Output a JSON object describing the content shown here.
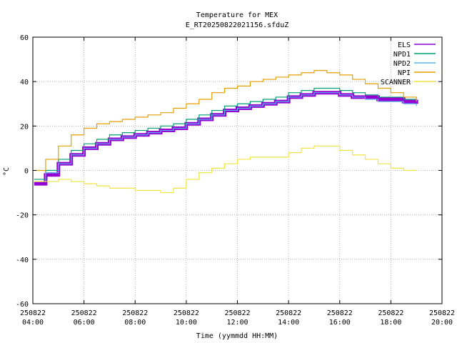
{
  "chart_data": {
    "type": "line",
    "title": "Temperature for MEX",
    "subtitle": "E_RT20250822021156.sfduZ",
    "xlabel": "Time (yymmdd HH:MM)",
    "ylabel": "°C",
    "xlim": [
      4,
      20
    ],
    "ylim": [
      -60,
      60
    ],
    "grid": true,
    "legend_position": "top-right",
    "x_ticks": [
      {
        "x": 4,
        "date": "250822",
        "time": "04:00"
      },
      {
        "x": 6,
        "date": "250822",
        "time": "06:00"
      },
      {
        "x": 8,
        "date": "250822",
        "time": "08:00"
      },
      {
        "x": 10,
        "date": "250822",
        "time": "10:00"
      },
      {
        "x": 12,
        "date": "250822",
        "time": "12:00"
      },
      {
        "x": 14,
        "date": "250822",
        "time": "14:00"
      },
      {
        "x": 16,
        "date": "250822",
        "time": "16:00"
      },
      {
        "x": 18,
        "date": "250822",
        "time": "18:00"
      },
      {
        "x": 20,
        "date": "250822",
        "time": "20:00"
      }
    ],
    "y_ticks": [
      -60,
      -40,
      -20,
      0,
      20,
      40,
      60
    ],
    "series": [
      {
        "name": "ELS",
        "color": "#9400d3",
        "width": 5,
        "x": [
          4.05,
          4.5,
          5.0,
          5.5,
          6.0,
          6.5,
          7.0,
          7.5,
          8.0,
          8.5,
          9.0,
          9.5,
          10.0,
          10.5,
          11.0,
          11.5,
          12.0,
          12.5,
          13.0,
          13.5,
          14.0,
          14.5,
          15.0,
          15.5,
          16.0,
          16.5,
          17.0,
          17.5,
          18.0,
          18.5,
          19.0
        ],
        "y": [
          -6,
          -2,
          3,
          7,
          10,
          12,
          14,
          15,
          16,
          17,
          18,
          19,
          21,
          23,
          25,
          27,
          28,
          29,
          30,
          31,
          33,
          34,
          35,
          35,
          34,
          33,
          33,
          32,
          32,
          31,
          30
        ]
      },
      {
        "name": "NPD1",
        "color": "#009e73",
        "width": 1.2,
        "x": [
          4.05,
          4.5,
          5.0,
          5.5,
          6.0,
          6.5,
          7.0,
          7.5,
          8.0,
          8.5,
          9.0,
          9.5,
          10.0,
          10.5,
          11.0,
          11.5,
          12.0,
          12.5,
          13.0,
          13.5,
          14.0,
          14.5,
          15.0,
          15.5,
          16.0,
          16.5,
          17.0,
          17.5,
          18.0,
          18.5,
          19.0
        ],
        "y": [
          -4,
          0,
          5,
          9,
          12,
          14,
          16,
          17,
          18,
          19,
          20,
          21,
          23,
          25,
          27,
          29,
          30,
          31,
          32,
          33,
          35,
          36,
          37,
          37,
          36,
          35,
          34,
          33,
          33,
          32,
          31
        ]
      },
      {
        "name": "NPD2",
        "color": "#56b4e9",
        "width": 1.2,
        "x": [
          4.05,
          4.5,
          5.0,
          5.5,
          6.0,
          6.5,
          7.0,
          7.5,
          8.0,
          8.5,
          9.0,
          9.5,
          10.0,
          10.5,
          11.0,
          11.5,
          12.0,
          12.5,
          13.0,
          13.5,
          14.0,
          14.5,
          15.0,
          15.5,
          16.0,
          16.5,
          17.0,
          17.5,
          18.0,
          18.5,
          19.0
        ],
        "y": [
          -5,
          -1,
          3,
          7,
          10,
          12,
          14,
          15,
          16,
          17,
          18,
          19,
          21,
          23,
          25,
          27,
          28,
          29,
          30,
          31,
          33,
          34,
          35,
          35,
          34,
          33,
          32,
          31,
          31,
          30,
          29
        ]
      },
      {
        "name": "NPI",
        "color": "#e69f00",
        "width": 1.2,
        "x": [
          4.05,
          4.5,
          5.0,
          5.5,
          6.0,
          6.5,
          7.0,
          7.5,
          8.0,
          8.5,
          9.0,
          9.5,
          10.0,
          10.5,
          11.0,
          11.5,
          12.0,
          12.5,
          13.0,
          13.5,
          14.0,
          14.5,
          15.0,
          15.5,
          16.0,
          16.5,
          17.0,
          17.5,
          18.0,
          18.5,
          19.0
        ],
        "y": [
          0,
          5,
          11,
          16,
          19,
          21,
          22,
          23,
          24,
          25,
          26,
          28,
          30,
          32,
          35,
          37,
          38,
          40,
          41,
          42,
          43,
          44,
          45,
          44,
          43,
          41,
          39,
          37,
          35,
          33,
          31
        ]
      },
      {
        "name": "SCANNER",
        "color": "#f0e442",
        "width": 1.2,
        "x": [
          4.05,
          4.5,
          5.0,
          5.5,
          6.0,
          6.5,
          7.0,
          7.5,
          8.0,
          8.5,
          9.0,
          9.5,
          10.0,
          10.5,
          11.0,
          11.5,
          12.0,
          12.5,
          13.0,
          13.5,
          14.0,
          14.5,
          15.0,
          15.5,
          16.0,
          16.5,
          17.0,
          17.5,
          18.0,
          18.5,
          19.0
        ],
        "y": [
          -5,
          -5,
          -4,
          -5,
          -6,
          -7,
          -8,
          -8,
          -9,
          -9,
          -10,
          -8,
          -4,
          -1,
          1,
          3,
          5,
          6,
          6,
          6,
          8,
          10,
          11,
          11,
          9,
          7,
          5,
          3,
          1,
          0,
          0
        ]
      }
    ]
  }
}
